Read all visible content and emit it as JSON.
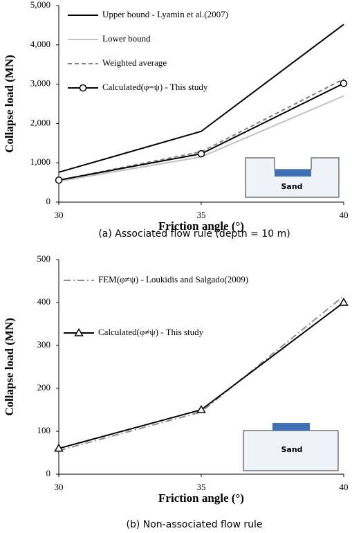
{
  "chart_data": [
    {
      "type": "line",
      "title": "(a) Associated flow rule (depth = 10 m)",
      "x_label": "Friction angle (°)",
      "y_label": "Collapse load (MN)",
      "annotation": "Sand",
      "x": [
        30,
        35,
        40
      ],
      "xlim": [
        30,
        40
      ],
      "xticks": [
        30,
        35,
        40
      ],
      "ylim": [
        0,
        5000
      ],
      "yticks": [
        0,
        {
          "value": 1000,
          "label": "1,000"
        },
        {
          "value": 2000,
          "label": "2,000"
        },
        {
          "value": 3000,
          "label": "3,000"
        },
        {
          "value": 4000,
          "label": "4,000"
        },
        {
          "value": 5000,
          "label": "5,000"
        }
      ],
      "series": [
        {
          "name": "Upper bound - Lyamin et al.(2007)",
          "color": "#000000",
          "dash": "solid",
          "marker": null,
          "values": [
            760,
            1800,
            4520
          ]
        },
        {
          "name": "Lower bound",
          "color": "#c0c0c0",
          "dash": "solid",
          "marker": null,
          "values": [
            530,
            1150,
            2700
          ]
        },
        {
          "name": "Weighted average",
          "color": "#808080",
          "dash": "dashed",
          "marker": null,
          "values": [
            560,
            1280,
            3130
          ]
        },
        {
          "name": "Calculated(φ=ψ) - This study",
          "color": "#000000",
          "dash": "solid",
          "marker": "circle",
          "values": [
            560,
            1230,
            3020
          ]
        }
      ]
    },
    {
      "type": "line",
      "title": "(b) Non-associated flow rule",
      "x_label": "Friction angle (°)",
      "y_label": "Collapse load (MN)",
      "annotation": "Sand",
      "x": [
        30,
        35,
        40
      ],
      "xlim": [
        30,
        40
      ],
      "xticks": [
        30,
        35,
        40
      ],
      "ylim": [
        0,
        500
      ],
      "yticks": [
        0,
        100,
        200,
        300,
        400,
        500
      ],
      "series": [
        {
          "name": "FEM(φ≠ψ) - Loukidis and Salgado(2009)",
          "color": "#909090",
          "dash": "dashdot",
          "marker": null,
          "values": [
            55,
            145,
            415
          ]
        },
        {
          "name": "Calculated(φ≠ψ) - This study",
          "color": "#000000",
          "dash": "solid",
          "marker": "triangle",
          "values": [
            60,
            150,
            400
          ]
        }
      ]
    }
  ]
}
